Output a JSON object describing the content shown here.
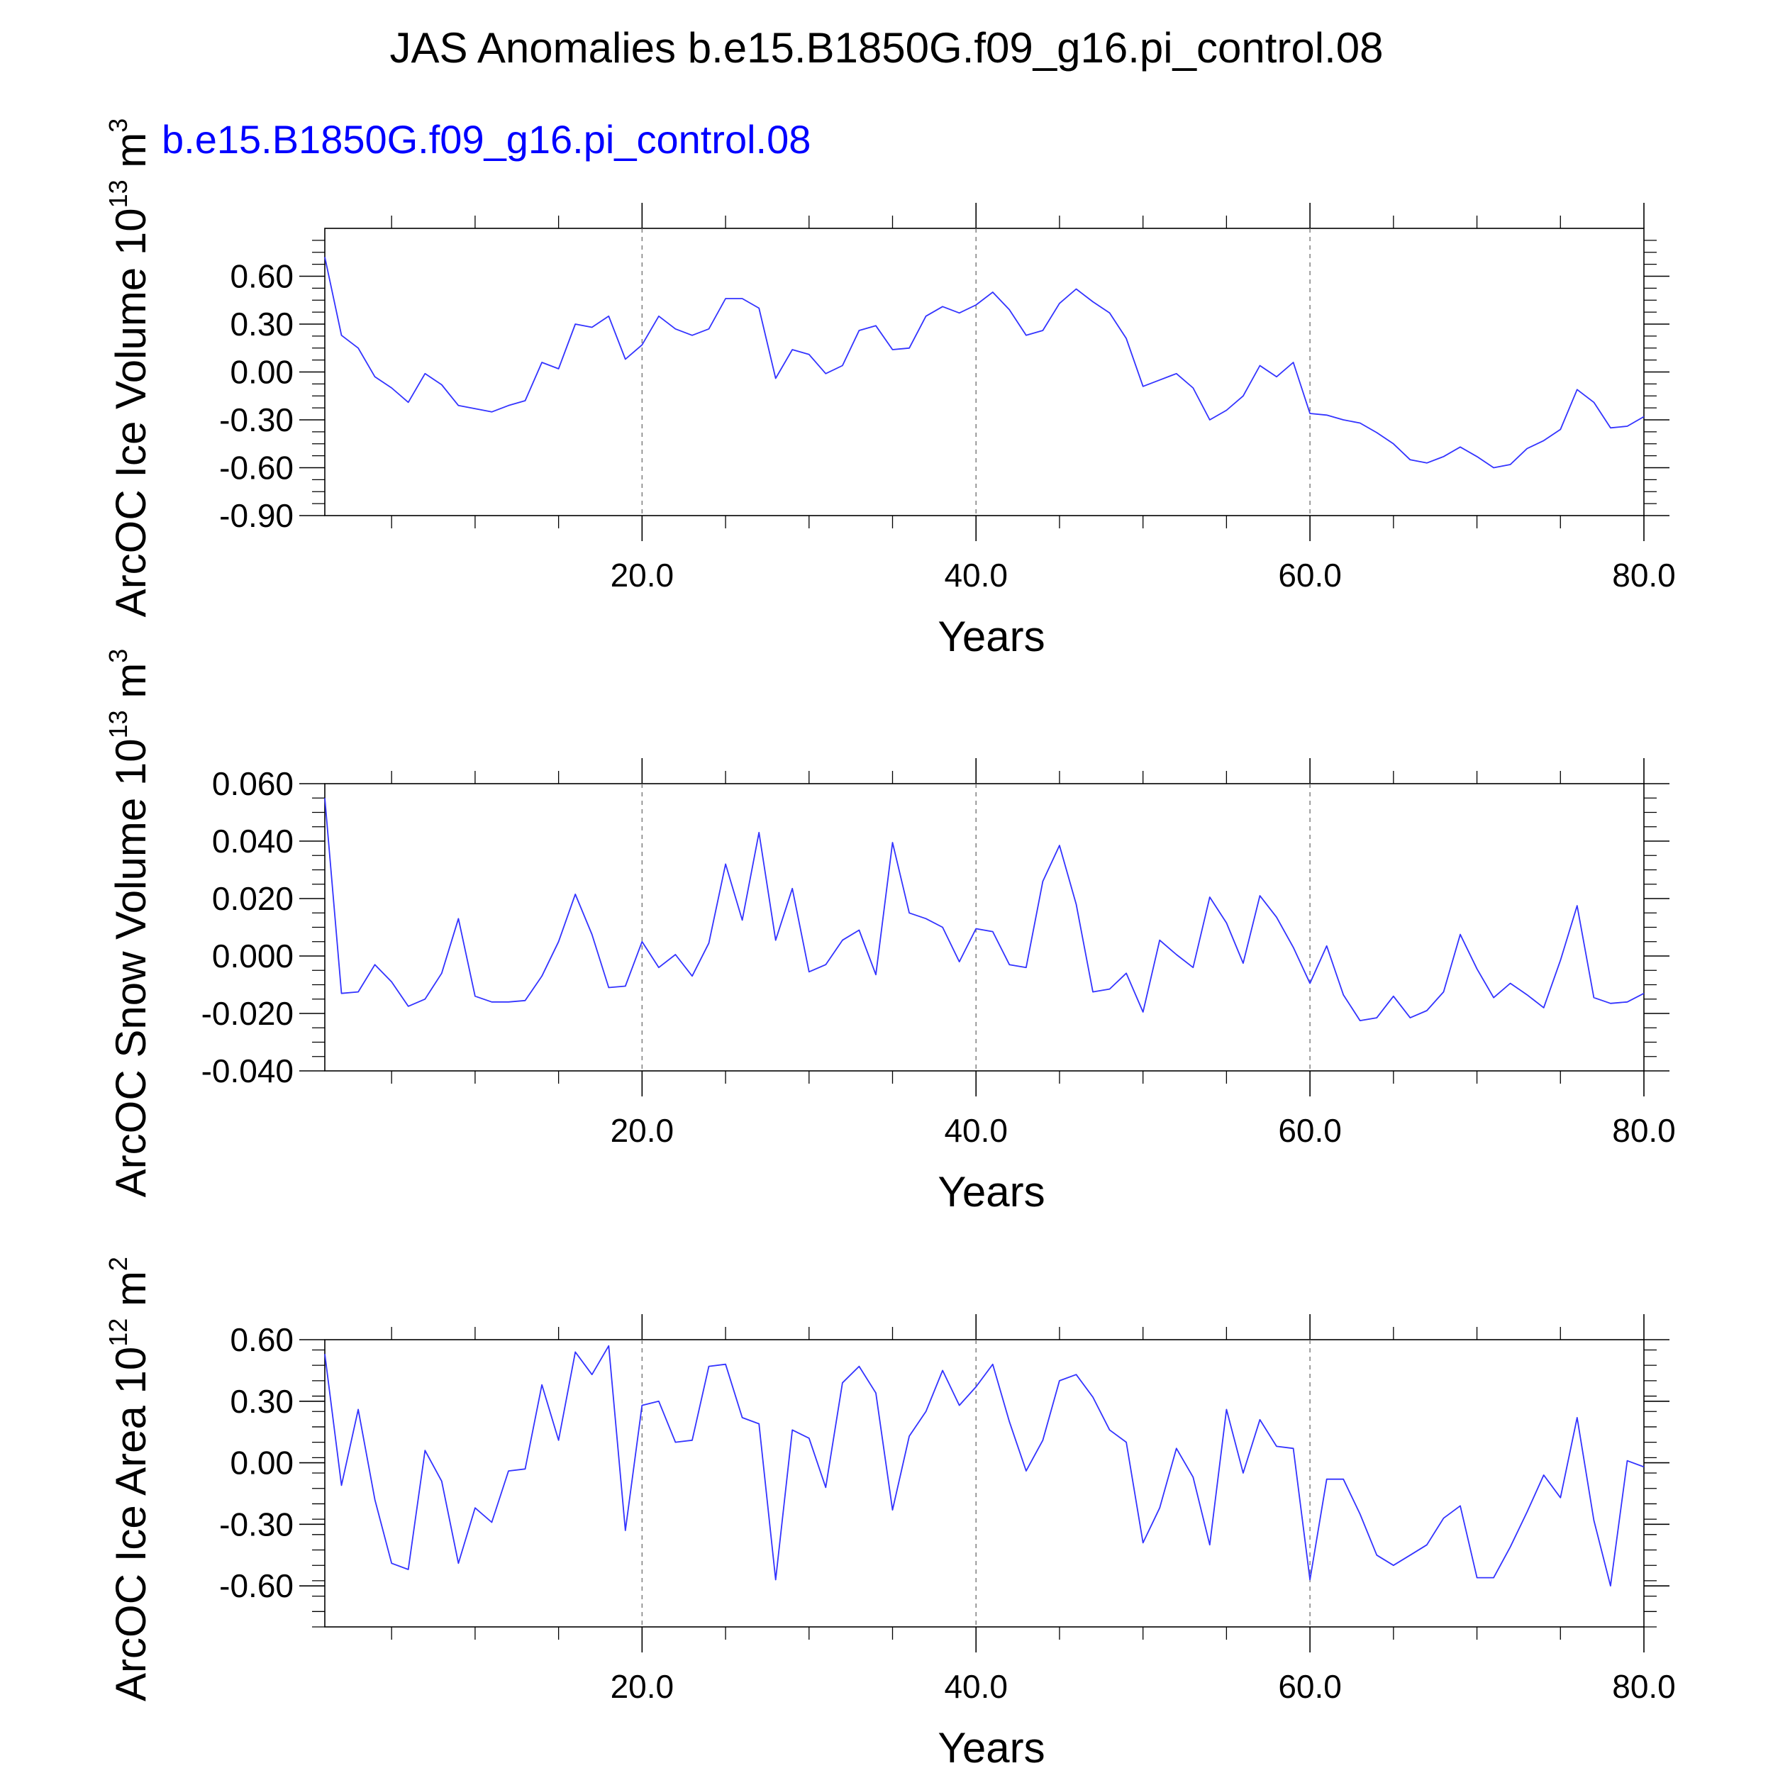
{
  "figure": {
    "title": "JAS Anomalies b.e15.B1850G.f09_g16.pi_control.08",
    "case_label": "b.e15.B1850G.f09_g16.pi_control.08",
    "series_color": "#3333ff",
    "case_label_color": "#0000ff"
  },
  "chart_data": [
    {
      "type": "line",
      "ylabel": {
        "text": "ArcOC Ice Volume 10",
        "exp": "13",
        "unit": " m",
        "unit_exp": "3"
      },
      "xlabel": "Years",
      "xlim": [
        1,
        80
      ],
      "ylim": [
        -0.9,
        0.9
      ],
      "x_ticks": [
        20,
        40,
        60,
        80
      ],
      "x_tick_labels": [
        "20.0",
        "40.0",
        "60.0",
        "80.0"
      ],
      "y_ticks": [
        -0.9,
        -0.6,
        -0.3,
        0.0,
        0.3,
        0.6
      ],
      "y_tick_labels": [
        "-0.90",
        "-0.60",
        "-0.30",
        "0.00",
        "0.30",
        "0.60"
      ],
      "grid": "vertical dashed at 20, 40, 60",
      "values": [
        0.72,
        0.23,
        0.15,
        -0.03,
        -0.1,
        -0.19,
        -0.01,
        -0.08,
        -0.21,
        -0.23,
        -0.25,
        -0.21,
        -0.18,
        0.06,
        0.02,
        0.3,
        0.28,
        0.35,
        0.08,
        0.17,
        0.35,
        0.27,
        0.23,
        0.27,
        0.46,
        0.46,
        0.4,
        -0.04,
        0.14,
        0.11,
        -0.01,
        0.04,
        0.26,
        0.29,
        0.14,
        0.15,
        0.35,
        0.41,
        0.37,
        0.42,
        0.5,
        0.39,
        0.23,
        0.26,
        0.43,
        0.52,
        0.44,
        0.37,
        0.21,
        -0.09,
        -0.05,
        -0.01,
        -0.1,
        -0.3,
        -0.24,
        -0.15,
        0.04,
        -0.03,
        0.06,
        -0.26,
        -0.27,
        -0.3,
        -0.32,
        -0.38,
        -0.45,
        -0.55,
        -0.57,
        -0.53,
        -0.47,
        -0.53,
        -0.6,
        -0.58,
        -0.48,
        -0.43,
        -0.36,
        -0.11,
        -0.19,
        -0.35,
        -0.34,
        -0.28
      ]
    },
    {
      "type": "line",
      "ylabel": {
        "text": "ArcOC Snow Volume 10",
        "exp": "13",
        "unit": " m",
        "unit_exp": "3"
      },
      "xlabel": "Years",
      "xlim": [
        1,
        80
      ],
      "ylim": [
        -0.04,
        0.06
      ],
      "x_ticks": [
        20,
        40,
        60,
        80
      ],
      "x_tick_labels": [
        "20.0",
        "40.0",
        "60.0",
        "80.0"
      ],
      "y_ticks": [
        -0.04,
        -0.02,
        0.0,
        0.02,
        0.04,
        0.06
      ],
      "y_tick_labels": [
        "-0.040",
        "-0.020",
        "0.000",
        "0.020",
        "0.040",
        "0.060"
      ],
      "grid": "vertical dashed at 20, 40, 60",
      "values": [
        0.055,
        -0.013,
        -0.0125,
        -0.003,
        -0.009,
        -0.0175,
        -0.015,
        -0.006,
        0.013,
        -0.014,
        -0.016,
        -0.016,
        -0.0155,
        -0.007,
        0.005,
        0.0215,
        0.0075,
        -0.011,
        -0.0105,
        0.005,
        -0.004,
        0.0005,
        -0.007,
        0.0045,
        0.032,
        0.0125,
        0.043,
        0.0055,
        0.0235,
        -0.0055,
        -0.003,
        0.0055,
        0.009,
        -0.0065,
        0.0395,
        0.015,
        0.013,
        0.01,
        -0.002,
        0.0095,
        0.0085,
        -0.003,
        -0.004,
        0.026,
        0.0385,
        0.018,
        -0.0125,
        -0.0115,
        -0.006,
        -0.0195,
        0.0055,
        0.0005,
        -0.004,
        0.0205,
        0.0115,
        -0.0025,
        0.021,
        0.0135,
        0.003,
        -0.0095,
        0.0035,
        -0.0135,
        -0.0225,
        -0.0215,
        -0.014,
        -0.0215,
        -0.019,
        -0.0125,
        0.0075,
        -0.0045,
        -0.0145,
        -0.0095,
        -0.0135,
        -0.018,
        -0.0015,
        0.0175,
        -0.0145,
        -0.0165,
        -0.016,
        -0.013
      ]
    },
    {
      "type": "line",
      "ylabel": {
        "text": "ArcOC Ice Area 10",
        "exp": "12",
        "unit": " m",
        "unit_exp": "2"
      },
      "xlabel": "Years",
      "xlim": [
        1,
        80
      ],
      "ylim": [
        -0.8,
        0.6
      ],
      "x_ticks": [
        20,
        40,
        60,
        80
      ],
      "x_tick_labels": [
        "20.0",
        "40.0",
        "60.0",
        "80.0"
      ],
      "y_ticks": [
        -0.6,
        -0.3,
        0.0,
        0.3,
        0.6
      ],
      "y_tick_labels": [
        "-0.60",
        "-0.30",
        "0.00",
        "0.30",
        "0.60"
      ],
      "grid": "vertical dashed at 20, 40, 60",
      "values": [
        0.53,
        -0.11,
        0.26,
        -0.18,
        -0.49,
        -0.52,
        0.06,
        -0.09,
        -0.49,
        -0.22,
        -0.29,
        -0.04,
        -0.03,
        0.38,
        0.11,
        0.54,
        0.43,
        0.57,
        -0.33,
        0.28,
        0.3,
        0.1,
        0.11,
        0.47,
        0.48,
        0.22,
        0.19,
        -0.57,
        0.16,
        0.12,
        -0.12,
        0.39,
        0.47,
        0.34,
        -0.23,
        0.13,
        0.25,
        0.45,
        0.28,
        0.37,
        0.48,
        0.2,
        -0.04,
        0.11,
        0.4,
        0.43,
        0.32,
        0.16,
        0.1,
        -0.39,
        -0.22,
        0.07,
        -0.07,
        -0.4,
        0.26,
        -0.05,
        0.21,
        0.08,
        0.07,
        -0.57,
        -0.08,
        -0.08,
        -0.25,
        -0.45,
        -0.5,
        -0.45,
        -0.4,
        -0.27,
        -0.21,
        -0.56,
        -0.56,
        -0.41,
        -0.24,
        -0.06,
        -0.17,
        0.22,
        -0.28,
        -0.6,
        0.01,
        -0.02
      ]
    }
  ]
}
